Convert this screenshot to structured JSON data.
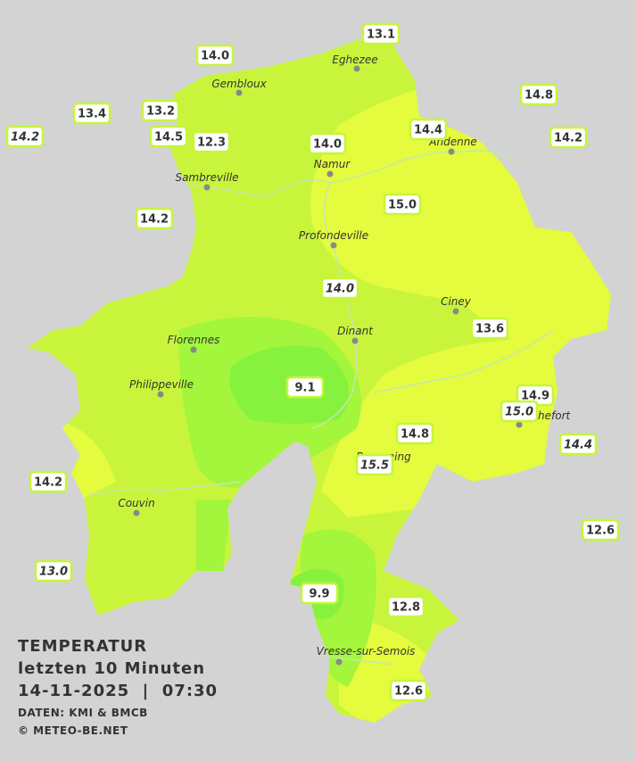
{
  "map": {
    "title": [
      "TEMPERATUR",
      "letzten 10 Minuten",
      "14-11-2025  |  07:30"
    ],
    "credits": [
      "DATEN: KMI & BMCB",
      "© METEO-BE.NET"
    ],
    "cities": [
      "Eghezee",
      "Gembloux",
      "Andenne",
      "Namur",
      "Sambreville",
      "Profondeville",
      "Ciney",
      "Dinant",
      "Florennes",
      "Philippeville",
      "Beauraing",
      "Rochefort",
      "Couvin",
      "Vresse-sur-Semois"
    ],
    "stations": [
      "13.1",
      "14.0",
      "14.8",
      "13.4",
      "13.2",
      "14.2",
      "14.5",
      "12.3",
      "14.0",
      "14.4",
      "14.2",
      "15.0",
      "14.2",
      "14.0",
      "13.6",
      "9.1",
      "14.9",
      "15.0",
      "14.8",
      "14.4",
      "15.5",
      "14.2",
      "12.6",
      "13.0",
      "9.9",
      "12.8",
      "12.6"
    ]
  }
}
